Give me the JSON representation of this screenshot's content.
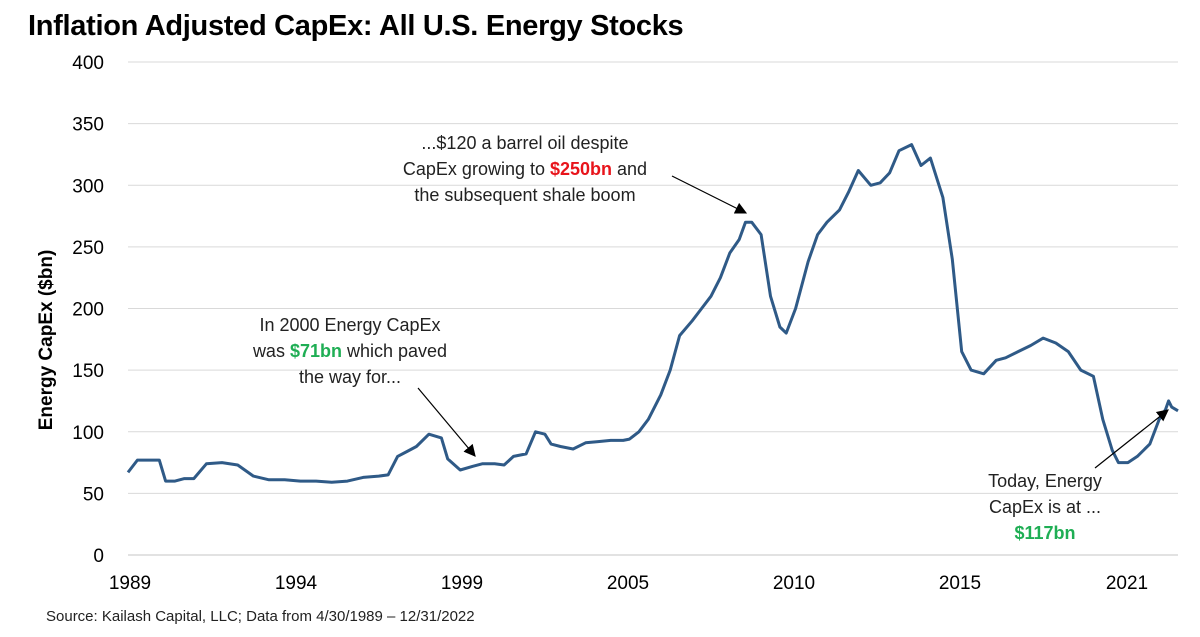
{
  "title": "Inflation Adjusted CapEx: All U.S. Energy Stocks",
  "source": "Source: Kailash Capital, LLC; Data from 4/30/1989 – 12/31/2022",
  "colors": {
    "line": "#2f5a87",
    "grid": "#d9d9d9",
    "red": "#e8141b",
    "green": "#1fae54"
  },
  "annotations": {
    "a1": {
      "line1": "In 2000 Energy CapEx",
      "pre2": "was ",
      "hl2": "$71bn",
      "post2": " which paved",
      "line3": "the way for..."
    },
    "a2": {
      "line1": "...$120 a barrel oil despite",
      "pre2": "CapEx growing to ",
      "hl2": "$250bn",
      "post2": " and",
      "line3": "the subsequent shale boom"
    },
    "a3": {
      "line1": "Today, Energy",
      "line2": "CapEx is at ...",
      "hl3": "$117bn"
    }
  },
  "chart_data": {
    "type": "line",
    "title": "Inflation Adjusted CapEx: All U.S. Energy Stocks",
    "xlabel": "",
    "ylabel": "Energy CapEx ($bn)",
    "ylim": [
      0,
      400
    ],
    "xlim": [
      1989.0,
      2022.5
    ],
    "yticks": [
      0,
      50,
      100,
      150,
      200,
      250,
      300,
      350,
      400
    ],
    "xtick_labels": [
      "1989",
      "1994",
      "1999",
      "2005",
      "2010",
      "2015",
      "2021"
    ],
    "grid": true,
    "series": [
      {
        "x": [
          1989.0,
          1989.3,
          1989.6,
          1990.0,
          1990.2,
          1990.5,
          1990.8,
          1991.1,
          1991.5,
          1992.0,
          1992.5,
          1993.0,
          1993.5,
          1994.0,
          1994.5,
          1995.0,
          1995.5,
          1996.0,
          1996.5,
          1997.0,
          1997.3,
          1997.6,
          1997.9,
          1998.2,
          1998.6,
          1999.0,
          1999.2,
          1999.6,
          2000.0,
          2000.3,
          2000.7,
          2001.0,
          2001.3,
          2001.7,
          2002.0,
          2002.3,
          2002.5,
          2002.8,
          2003.2,
          2003.6,
          2004.0,
          2004.4,
          2004.8,
          2005.0,
          2005.3,
          2005.6,
          2006.0,
          2006.3,
          2006.6,
          2007.0,
          2007.3,
          2007.6,
          2007.9,
          2008.2,
          2008.5,
          2008.7,
          2008.9,
          2009.2,
          2009.5,
          2009.8,
          2010.0,
          2010.3,
          2010.7,
          2011.0,
          2011.3,
          2011.7,
          2012.0,
          2012.3,
          2012.7,
          2013.0,
          2013.3,
          2013.6,
          2014.0,
          2014.3,
          2014.6,
          2015.0,
          2015.3,
          2015.6,
          2015.9,
          2016.3,
          2016.7,
          2017.0,
          2017.4,
          2017.8,
          2018.2,
          2018.6,
          2019.0,
          2019.4,
          2019.8,
          2020.1,
          2020.4,
          2020.6,
          2020.9,
          2021.2,
          2021.6,
          2021.9,
          2022.1,
          2022.2,
          2022.3,
          2022.5
        ],
        "values": [
          67,
          77,
          77,
          77,
          60,
          60,
          62,
          62,
          74,
          75,
          73,
          64,
          61,
          61,
          60,
          60,
          59,
          60,
          63,
          64,
          65,
          80,
          84,
          88,
          98,
          95,
          78,
          69,
          72,
          74,
          74,
          73,
          80,
          82,
          100,
          98,
          90,
          88,
          86,
          91,
          92,
          93,
          93,
          94,
          100,
          110,
          130,
          150,
          178,
          190,
          200,
          210,
          225,
          245,
          256,
          270,
          270,
          260,
          210,
          185,
          180,
          200,
          238,
          260,
          270,
          280,
          295,
          312,
          300,
          302,
          310,
          328,
          333,
          316,
          322,
          290,
          240,
          165,
          150,
          147,
          158,
          160,
          165,
          170,
          176,
          172,
          165,
          150,
          145,
          110,
          85,
          75,
          75,
          80,
          90,
          110,
          118,
          125,
          120,
          117
        ]
      }
    ]
  }
}
